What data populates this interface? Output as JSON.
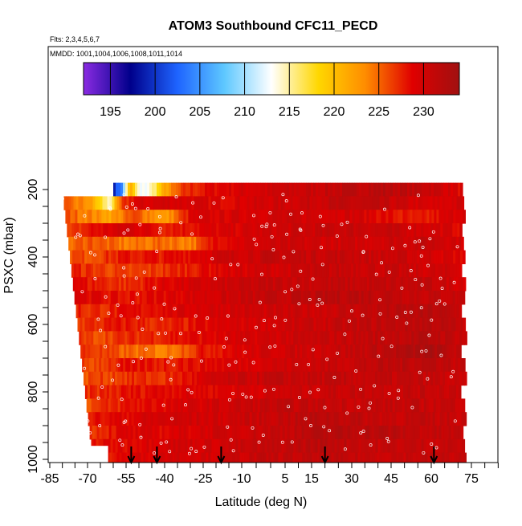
{
  "chart_data": {
    "type": "heatmap",
    "title": "ATOM3 Southbound CFC11_PECD",
    "subtitle_lines": [
      "Flts: 2,3,4,5,6,7",
      "MMDD: 1001,1004,1006,1008,1011,1014"
    ],
    "xlabel": "Latitude (deg N)",
    "ylabel": "PSXC (mbar)",
    "xlim": [
      -85,
      85
    ],
    "ylim": [
      1000,
      150
    ],
    "x_ticks": [
      -85,
      -70,
      -55,
      -40,
      -25,
      -10,
      5,
      15,
      30,
      45,
      60,
      75
    ],
    "y_ticks": [
      200,
      400,
      600,
      800,
      1000
    ],
    "colorbar": {
      "range": [
        192,
        234
      ],
      "ticks": [
        195,
        200,
        205,
        210,
        215,
        220,
        225,
        230
      ],
      "colors": [
        "#8a2be2",
        "#00008b",
        "#1e64ff",
        "#5ec8ff",
        "#ffffff",
        "#ffd700",
        "#ff8c00",
        "#e00000",
        "#a01010"
      ]
    },
    "arrows_latitude": [
      -53,
      -43,
      -18,
      20,
      61
    ],
    "layers": [
      {
        "p": 200,
        "cols": [
          [
            -60,
            200
          ],
          [
            -57,
            205
          ],
          [
            -54,
            222
          ],
          [
            -50,
            212
          ],
          [
            -46,
            214
          ],
          [
            -40,
            222
          ],
          [
            -32,
            227
          ],
          [
            -20,
            229
          ],
          [
            0,
            230
          ],
          [
            20,
            231
          ],
          [
            40,
            232
          ],
          [
            60,
            231
          ],
          [
            70,
            229
          ]
        ]
      },
      {
        "p": 240,
        "cols": [
          [
            -80,
            225
          ],
          [
            -70,
            223
          ],
          [
            -62,
            214
          ],
          [
            -57,
            226
          ],
          [
            -52,
            229
          ],
          [
            -40,
            230
          ],
          [
            -20,
            229
          ],
          [
            0,
            230
          ],
          [
            20,
            231
          ],
          [
            40,
            231
          ],
          [
            60,
            229
          ],
          [
            70,
            230
          ]
        ]
      },
      {
        "p": 280,
        "cols": [
          [
            -80,
            226
          ],
          [
            -70,
            224
          ],
          [
            -62,
            222
          ],
          [
            -52,
            226
          ],
          [
            -40,
            222
          ],
          [
            -30,
            229
          ],
          [
            0,
            230
          ],
          [
            30,
            230
          ],
          [
            55,
            227
          ],
          [
            70,
            230
          ]
        ]
      },
      {
        "p": 320,
        "cols": [
          [
            -80,
            225
          ],
          [
            -70,
            228
          ],
          [
            -55,
            230
          ],
          [
            -40,
            228
          ],
          [
            -20,
            229
          ],
          [
            0,
            230
          ],
          [
            30,
            231
          ],
          [
            60,
            230
          ],
          [
            70,
            229
          ]
        ]
      },
      {
        "p": 360,
        "cols": [
          [
            -80,
            224
          ],
          [
            -70,
            226
          ],
          [
            -55,
            224
          ],
          [
            -40,
            225
          ],
          [
            -30,
            224
          ],
          [
            -20,
            229
          ],
          [
            0,
            230
          ],
          [
            30,
            230
          ],
          [
            60,
            231
          ],
          [
            70,
            230
          ]
        ]
      },
      {
        "p": 400,
        "cols": [
          [
            -80,
            226
          ],
          [
            -70,
            226
          ],
          [
            -55,
            228
          ],
          [
            -40,
            228
          ],
          [
            -20,
            230
          ],
          [
            0,
            231
          ],
          [
            30,
            231
          ],
          [
            60,
            230
          ],
          [
            70,
            229
          ]
        ]
      },
      {
        "p": 440,
        "cols": [
          [
            -80,
            228
          ],
          [
            -70,
            227
          ],
          [
            -55,
            226
          ],
          [
            -40,
            227
          ],
          [
            -20,
            229
          ],
          [
            0,
            230
          ],
          [
            30,
            231
          ],
          [
            60,
            230
          ],
          [
            70,
            230
          ]
        ]
      },
      {
        "p": 480,
        "cols": [
          [
            -80,
            230
          ],
          [
            -70,
            228
          ],
          [
            -55,
            227
          ],
          [
            -40,
            229
          ],
          [
            -20,
            230
          ],
          [
            0,
            231
          ],
          [
            30,
            231
          ],
          [
            60,
            231
          ],
          [
            70,
            230
          ]
        ]
      },
      {
        "p": 520,
        "cols": [
          [
            -80,
            231
          ],
          [
            -70,
            229
          ],
          [
            -55,
            228
          ],
          [
            -40,
            229
          ],
          [
            -20,
            230
          ],
          [
            0,
            231
          ],
          [
            30,
            232
          ],
          [
            60,
            231
          ],
          [
            70,
            231
          ]
        ]
      },
      {
        "p": 560,
        "cols": [
          [
            -80,
            229
          ],
          [
            -70,
            227
          ],
          [
            -55,
            228
          ],
          [
            -40,
            229
          ],
          [
            -20,
            230
          ],
          [
            0,
            230
          ],
          [
            30,
            231
          ],
          [
            60,
            232
          ],
          [
            70,
            231
          ]
        ]
      },
      {
        "p": 600,
        "cols": [
          [
            -80,
            226
          ],
          [
            -70,
            227
          ],
          [
            -55,
            228
          ],
          [
            -40,
            227
          ],
          [
            -20,
            229
          ],
          [
            0,
            230
          ],
          [
            30,
            231
          ],
          [
            60,
            232
          ],
          [
            70,
            231
          ]
        ]
      },
      {
        "p": 640,
        "cols": [
          [
            -80,
            228
          ],
          [
            -70,
            226
          ],
          [
            -55,
            227
          ],
          [
            -40,
            228
          ],
          [
            -20,
            229
          ],
          [
            0,
            230
          ],
          [
            30,
            231
          ],
          [
            60,
            232
          ],
          [
            70,
            231
          ]
        ]
      },
      {
        "p": 680,
        "cols": [
          [
            -80,
            226
          ],
          [
            -70,
            227
          ],
          [
            -55,
            225
          ],
          [
            -40,
            224
          ],
          [
            -25,
            228
          ],
          [
            0,
            230
          ],
          [
            30,
            231
          ],
          [
            60,
            233
          ],
          [
            70,
            231
          ]
        ]
      },
      {
        "p": 720,
        "cols": [
          [
            -80,
            227
          ],
          [
            -70,
            226
          ],
          [
            -55,
            228
          ],
          [
            -40,
            228
          ],
          [
            -20,
            229
          ],
          [
            0,
            230
          ],
          [
            30,
            231
          ],
          [
            60,
            232
          ],
          [
            70,
            231
          ]
        ]
      },
      {
        "p": 760,
        "cols": [
          [
            -80,
            226
          ],
          [
            -70,
            226
          ],
          [
            -55,
            227
          ],
          [
            -40,
            227
          ],
          [
            -20,
            230
          ],
          [
            0,
            231
          ],
          [
            30,
            231
          ],
          [
            60,
            231
          ],
          [
            70,
            230
          ]
        ]
      },
      {
        "p": 800,
        "cols": [
          [
            -80,
            228
          ],
          [
            -70,
            227
          ],
          [
            -55,
            228
          ],
          [
            -40,
            229
          ],
          [
            -20,
            229
          ],
          [
            0,
            230
          ],
          [
            30,
            231
          ],
          [
            60,
            231
          ],
          [
            70,
            231
          ]
        ]
      },
      {
        "p": 840,
        "cols": [
          [
            -80,
            227
          ],
          [
            -70,
            226
          ],
          [
            -55,
            228
          ],
          [
            -40,
            229
          ],
          [
            -20,
            230
          ],
          [
            0,
            231
          ],
          [
            30,
            231
          ],
          [
            60,
            231
          ],
          [
            70,
            231
          ]
        ]
      },
      {
        "p": 880,
        "cols": [
          [
            -80,
            229
          ],
          [
            -70,
            228
          ],
          [
            -55,
            229
          ],
          [
            -40,
            230
          ],
          [
            -20,
            230
          ],
          [
            0,
            231
          ],
          [
            20,
            232
          ],
          [
            40,
            231
          ],
          [
            60,
            231
          ],
          [
            70,
            231
          ]
        ]
      },
      {
        "p": 920,
        "cols": [
          [
            -80,
            228
          ],
          [
            -70,
            227
          ],
          [
            -55,
            229
          ],
          [
            -40,
            229
          ],
          [
            -20,
            230
          ],
          [
            0,
            231
          ],
          [
            20,
            232
          ],
          [
            40,
            232
          ],
          [
            60,
            231
          ],
          [
            70,
            231
          ]
        ]
      },
      {
        "p": 960,
        "cols": [
          [
            -80,
            226
          ],
          [
            -70,
            228
          ],
          [
            -55,
            229
          ],
          [
            -40,
            230
          ],
          [
            -20,
            230
          ],
          [
            0,
            231
          ],
          [
            20,
            232
          ],
          [
            40,
            231
          ],
          [
            60,
            231
          ],
          [
            70,
            231
          ]
        ]
      },
      {
        "p": 1000,
        "cols": [
          [
            -63,
            228
          ],
          [
            -55,
            229
          ],
          [
            -40,
            230
          ],
          [
            -20,
            230
          ],
          [
            0,
            231
          ],
          [
            20,
            231
          ],
          [
            40,
            231
          ],
          [
            60,
            231
          ],
          [
            70,
            231
          ]
        ]
      }
    ]
  }
}
